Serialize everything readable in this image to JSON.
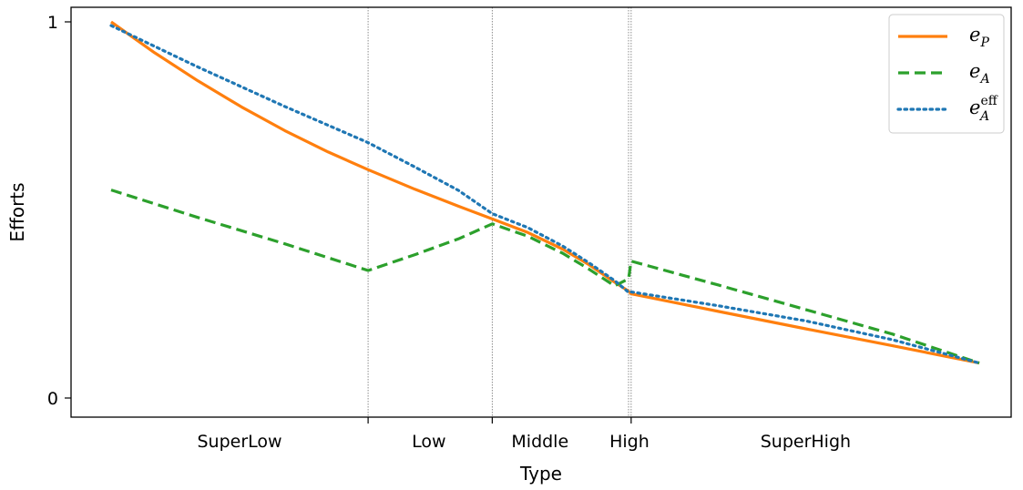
{
  "chart_data": {
    "type": "line",
    "xlabel": "Type",
    "ylabel": "Efforts",
    "xlim": [
      0,
      1
    ],
    "ylim": [
      0,
      1
    ],
    "y_ticks": [
      {
        "value": 0,
        "label": "0"
      },
      {
        "value": 1,
        "label": "1"
      }
    ],
    "x_boundaries": [
      0.296,
      0.439,
      0.596,
      0.599
    ],
    "x_tick_positions": [
      0.296,
      0.439,
      0.599
    ],
    "x_category_labels": [
      {
        "x": 0.148,
        "label": "SuperLow"
      },
      {
        "x": 0.366,
        "label": "Low"
      },
      {
        "x": 0.494,
        "label": "Middle"
      },
      {
        "x": 0.597,
        "label": "High"
      },
      {
        "x": 0.8,
        "label": "SuperHigh"
      }
    ],
    "grid": false,
    "legend_position": "top-right",
    "series": [
      {
        "name": "e_P",
        "legend_main": "e",
        "legend_sub": "P",
        "legend_sup": "",
        "color": "#ff7f0e",
        "style": "solid",
        "points": [
          [
            0,
            1
          ],
          [
            0.05,
            0.918
          ],
          [
            0.1,
            0.843
          ],
          [
            0.15,
            0.774
          ],
          [
            0.2,
            0.711
          ],
          [
            0.25,
            0.654
          ],
          [
            0.296,
            0.607
          ],
          [
            0.35,
            0.555
          ],
          [
            0.4,
            0.51
          ],
          [
            0.439,
            0.476
          ],
          [
            0.48,
            0.44
          ],
          [
            0.52,
            0.396
          ],
          [
            0.55,
            0.355
          ],
          [
            0.58,
            0.308
          ],
          [
            0.596,
            0.284
          ],
          [
            0.599,
            0.277
          ],
          [
            0.7,
            0.23
          ],
          [
            0.8,
            0.184
          ],
          [
            0.9,
            0.139
          ],
          [
            1.0,
            0.093
          ]
        ]
      },
      {
        "name": "e_A",
        "legend_main": "e",
        "legend_sub": "A",
        "legend_sup": "",
        "color": "#2ca02c",
        "style": "dashed",
        "points": [
          [
            0,
            0.553
          ],
          [
            0.1,
            0.48
          ],
          [
            0.2,
            0.41
          ],
          [
            0.296,
            0.339
          ],
          [
            0.35,
            0.381
          ],
          [
            0.4,
            0.423
          ],
          [
            0.439,
            0.463
          ],
          [
            0.48,
            0.43
          ],
          [
            0.52,
            0.385
          ],
          [
            0.55,
            0.343
          ],
          [
            0.58,
            0.298
          ],
          [
            0.596,
            0.317
          ],
          [
            0.599,
            0.364
          ],
          [
            0.7,
            0.3
          ],
          [
            0.8,
            0.235
          ],
          [
            0.9,
            0.17
          ],
          [
            1.0,
            0.093
          ]
        ]
      },
      {
        "name": "e_A^eff",
        "legend_main": "e",
        "legend_sub": "A",
        "legend_sup": "eff",
        "color": "#1f77b4",
        "style": "dotted",
        "points": [
          [
            0,
            0.99
          ],
          [
            0.1,
            0.88
          ],
          [
            0.2,
            0.775
          ],
          [
            0.296,
            0.679
          ],
          [
            0.35,
            0.614
          ],
          [
            0.4,
            0.552
          ],
          [
            0.439,
            0.49
          ],
          [
            0.48,
            0.453
          ],
          [
            0.52,
            0.404
          ],
          [
            0.55,
            0.36
          ],
          [
            0.58,
            0.312
          ],
          [
            0.596,
            0.281
          ],
          [
            0.599,
            0.282
          ],
          [
            0.7,
            0.245
          ],
          [
            0.8,
            0.205
          ],
          [
            0.9,
            0.155
          ],
          [
            1.0,
            0.093
          ]
        ]
      }
    ]
  }
}
